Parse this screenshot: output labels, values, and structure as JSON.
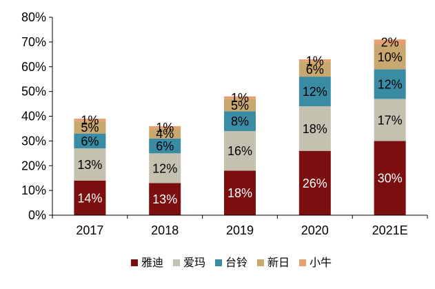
{
  "chart_data": {
    "type": "bar",
    "stacked": true,
    "title": "",
    "xlabel": "",
    "ylabel": "",
    "categories": [
      "2017",
      "2018",
      "2019",
      "2020",
      "2021E"
    ],
    "ylim": [
      0,
      80
    ],
    "y_ticks": [
      "0%",
      "10%",
      "20%",
      "30%",
      "40%",
      "50%",
      "60%",
      "70%",
      "80%"
    ],
    "grid": false,
    "legend_position": "bottom",
    "series": [
      {
        "name": "雅迪",
        "color": "#7B0F0F",
        "values": [
          14,
          13,
          18,
          26,
          30
        ],
        "labels": [
          "14%",
          "13%",
          "18%",
          "26%",
          "30%"
        ],
        "label_color": "#FFFFFF"
      },
      {
        "name": "爱玛",
        "color": "#C4C1B0",
        "values": [
          13,
          12,
          16,
          18,
          17
        ],
        "labels": [
          "13%",
          "12%",
          "16%",
          "18%",
          "17%"
        ],
        "label_color": "#000000"
      },
      {
        "name": "台铃",
        "color": "#3A8CA5",
        "values": [
          6,
          6,
          8,
          12,
          12
        ],
        "labels": [
          "6%",
          "6%",
          "8%",
          "12%",
          "12%"
        ],
        "label_color": "#000000"
      },
      {
        "name": "新日",
        "color": "#C8A86E",
        "values": [
          5,
          4,
          5,
          6,
          10
        ],
        "labels": [
          "5%",
          "4%",
          "5%",
          "6%",
          "10%"
        ],
        "label_color": "#000000"
      },
      {
        "name": "小牛",
        "color": "#E8A070",
        "values": [
          1,
          1,
          1,
          1,
          2
        ],
        "labels": [
          "1%",
          "1%",
          "1%",
          "1%",
          "2%"
        ],
        "label_color": "#000000"
      }
    ]
  }
}
